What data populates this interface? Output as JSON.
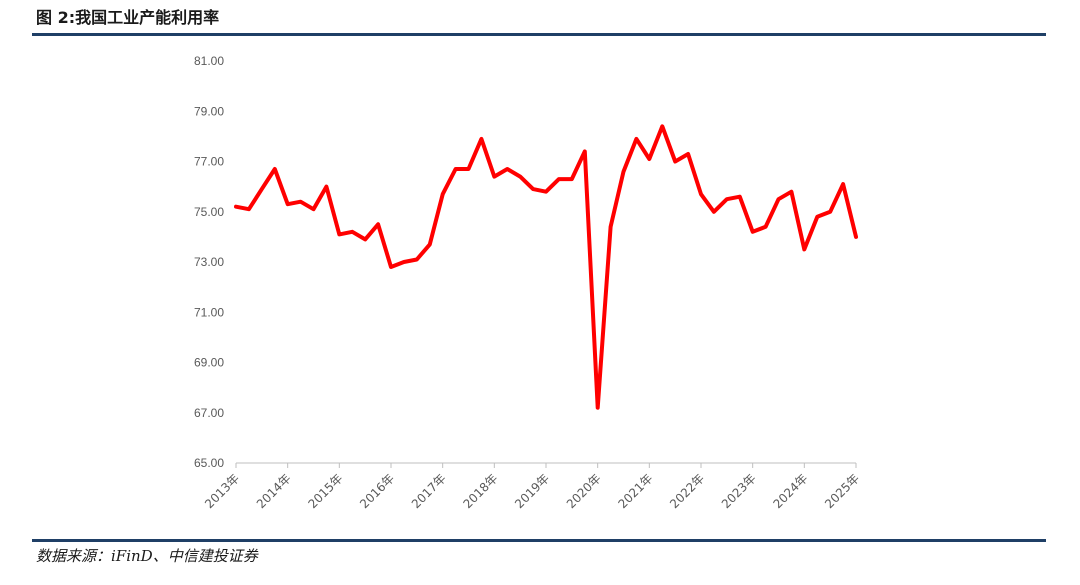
{
  "header": {
    "title": "图 2:我国工业产能利用率"
  },
  "footer": {
    "source": "数据来源：iFinD、中信建投证券"
  },
  "colors": {
    "rule": "#1f3f66",
    "series": "#ff0000",
    "axis": "#bfbfbf",
    "tick": "#595959"
  },
  "chart_data": {
    "type": "line",
    "title": "",
    "xlabel": "",
    "ylabel": "",
    "ylim": [
      65,
      81
    ],
    "yticks": [
      "81.00",
      "79.00",
      "77.00",
      "75.00",
      "73.00",
      "71.00",
      "69.00",
      "67.00",
      "65.00"
    ],
    "xticks": [
      "2013年",
      "2014年",
      "2015年",
      "2016年",
      "2017年",
      "2018年",
      "2019年",
      "2020年",
      "2021年",
      "2022年",
      "2023年",
      "2024年",
      "2025年"
    ],
    "grid": false,
    "legend": "none",
    "series": [
      {
        "values": [
          75.2,
          75.1,
          75.9,
          76.7,
          75.3,
          75.4,
          75.1,
          76.0,
          74.1,
          74.2,
          73.9,
          74.5,
          72.8,
          73.0,
          73.1,
          73.7,
          75.7,
          76.7,
          76.7,
          77.9,
          76.4,
          76.7,
          76.4,
          75.9,
          75.8,
          76.3,
          76.3,
          77.4,
          67.2,
          74.4,
          76.6,
          77.9,
          77.1,
          78.4,
          77.0,
          77.3,
          75.7,
          75.0,
          75.5,
          75.6,
          74.2,
          74.4,
          75.5,
          75.8,
          73.5,
          74.8,
          75.0,
          76.1,
          74.0
        ]
      }
    ]
  }
}
